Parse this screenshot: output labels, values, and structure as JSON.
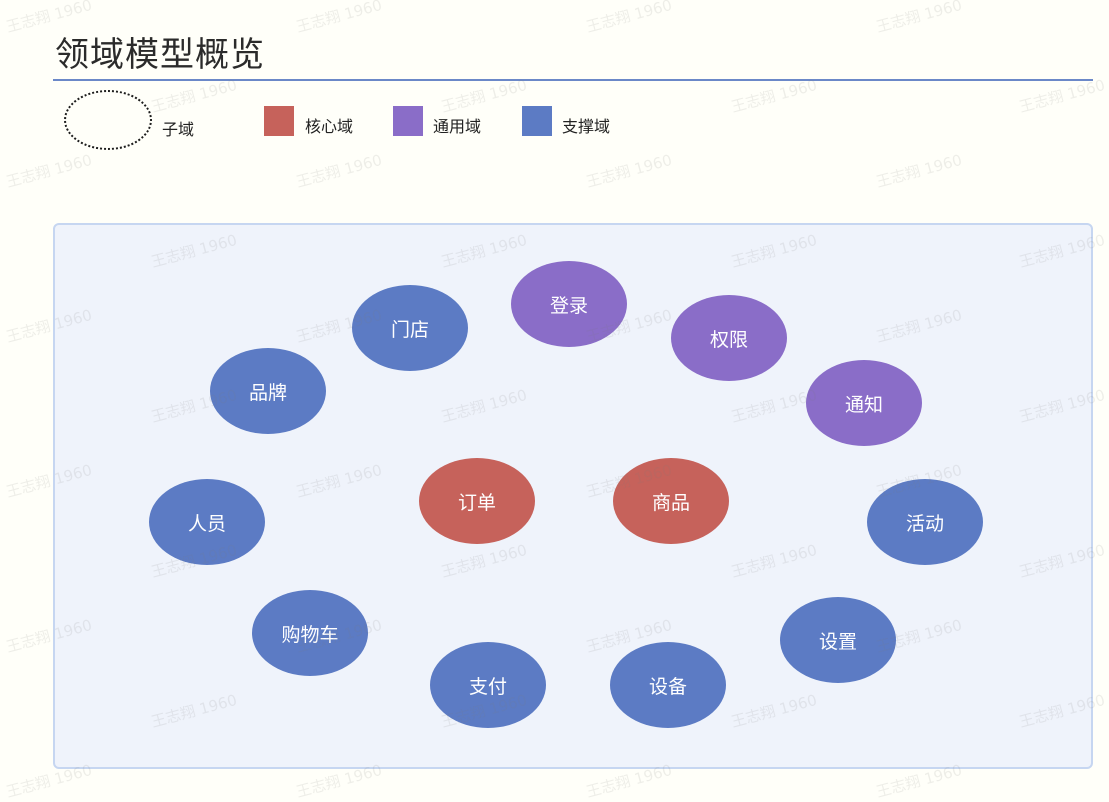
{
  "page": {
    "title": "领域模型概览"
  },
  "legend": {
    "subdomain_label": "子域",
    "core_label": "核心域",
    "generic_label": "通用域",
    "supporting_label": "支撑域"
  },
  "colors": {
    "core": "#c6625b",
    "generic": "#8a6dc8",
    "supporting": "#5c7bc4",
    "panel_bg": "#eff3fb",
    "panel_border": "#c6d6f1",
    "title_rule": "#6b88c8"
  },
  "domains": {
    "order": {
      "label": "订单",
      "category": "core"
    },
    "product": {
      "label": "商品",
      "category": "core"
    },
    "login": {
      "label": "登录",
      "category": "generic"
    },
    "permission": {
      "label": "权限",
      "category": "generic"
    },
    "notification": {
      "label": "通知",
      "category": "generic"
    },
    "store": {
      "label": "门店",
      "category": "supporting"
    },
    "brand": {
      "label": "品牌",
      "category": "supporting"
    },
    "personnel": {
      "label": "人员",
      "category": "supporting"
    },
    "cart": {
      "label": "购物车",
      "category": "supporting"
    },
    "payment": {
      "label": "支付",
      "category": "supporting"
    },
    "device": {
      "label": "设备",
      "category": "supporting"
    },
    "settings": {
      "label": "设置",
      "category": "supporting"
    },
    "activity": {
      "label": "活动",
      "category": "supporting"
    }
  },
  "watermark": {
    "text": "王志翔 1960"
  }
}
